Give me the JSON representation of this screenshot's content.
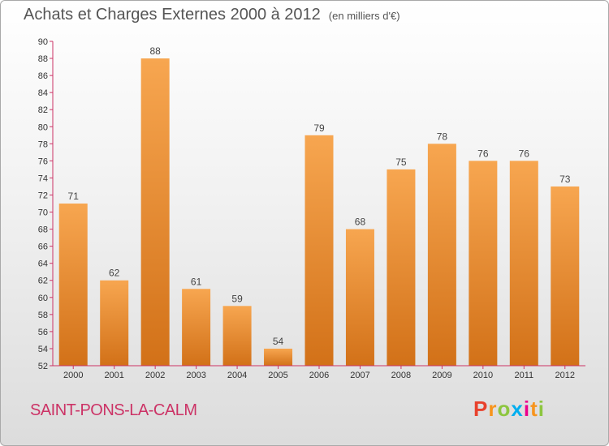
{
  "header": {
    "title": "Achats et Charges Externes 2000 à 2012",
    "subtitle": "(en milliers d'€)"
  },
  "footer": {
    "commune": "SAINT-PONS-LA-CALM",
    "logo_letters": [
      "P",
      "r",
      "o",
      "x",
      "i",
      "t",
      "i"
    ],
    "logo_colors": [
      "#e8412c",
      "#f7941d",
      "#8dc63f",
      "#00aeef",
      "#ec008c",
      "#f7941d",
      "#8dc63f"
    ]
  },
  "chart_data": {
    "type": "bar",
    "categories": [
      "2000",
      "2001",
      "2002",
      "2003",
      "2004",
      "2005",
      "2006",
      "2007",
      "2008",
      "2009",
      "2010",
      "2011",
      "2012"
    ],
    "values": [
      71,
      62,
      88,
      61,
      59,
      54,
      79,
      68,
      75,
      78,
      76,
      76,
      73
    ],
    "ylim": [
      52,
      90
    ],
    "yticks": [
      52,
      54,
      56,
      58,
      60,
      62,
      64,
      66,
      68,
      70,
      72,
      74,
      76,
      78,
      80,
      82,
      84,
      86,
      88,
      90
    ],
    "grid": false,
    "colors": {
      "bar_top": "#f7a650",
      "bar_bottom": "#d27118",
      "axis": "#cc3366"
    }
  }
}
